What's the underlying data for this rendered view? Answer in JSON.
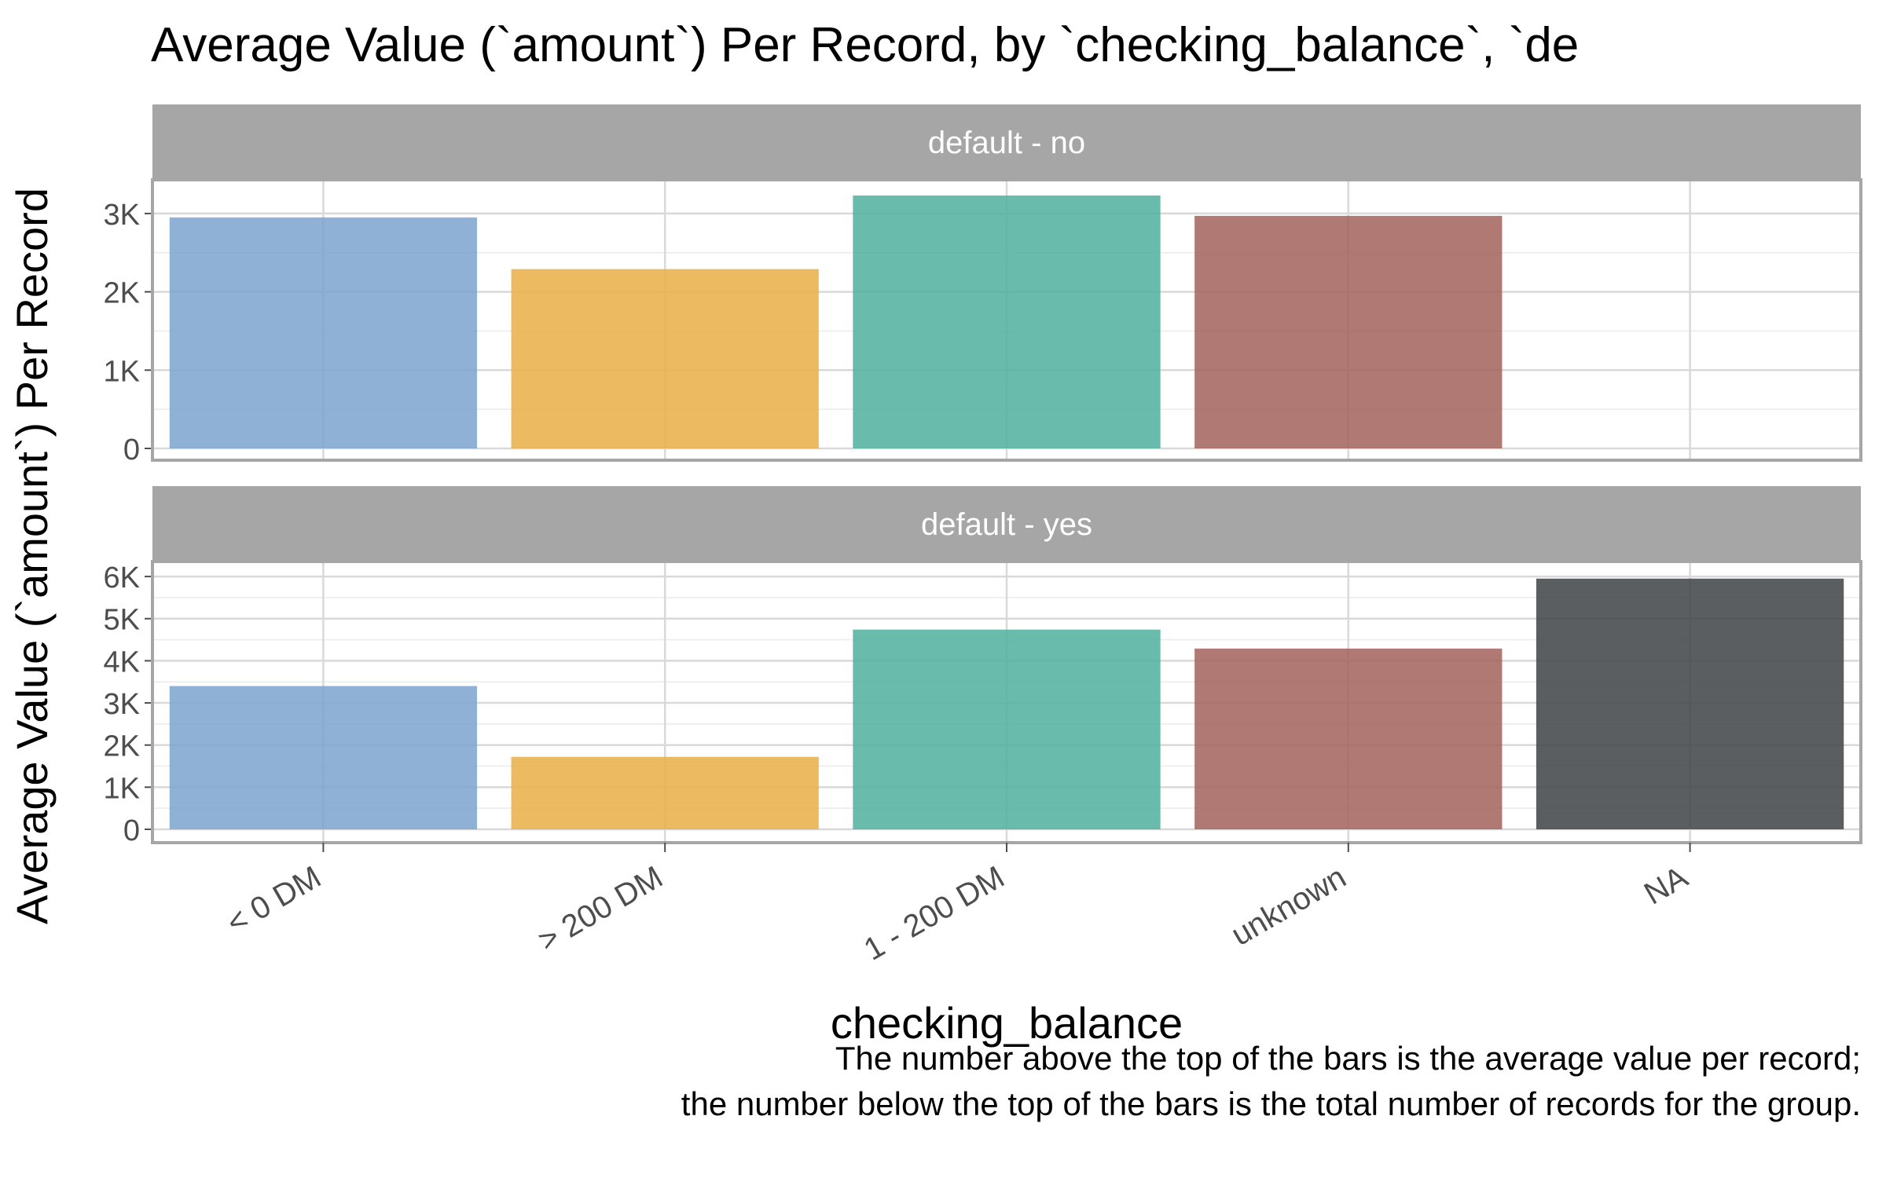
{
  "chart_data": {
    "type": "bar",
    "title": "Average Value (`amount`) Per Record, by `checking_balance`, `de",
    "xlabel": "checking_balance",
    "ylabel": "Average Value (`amount`) Per Record",
    "categories": [
      "< 0 DM",
      "> 200 DM",
      "1 - 200 DM",
      "unknown",
      "NA"
    ],
    "colors": [
      "#7BA3CF",
      "#E9AE45",
      "#4FAF9C",
      "#A2615B",
      "#3E4244"
    ],
    "panel_header_color": "#A6A6A6",
    "facets": [
      {
        "label": "default - no",
        "values": [
          2950,
          2290,
          3230,
          2970,
          null
        ],
        "ylim": [
          0,
          3400
        ],
        "yticks": [
          0,
          1000,
          2000,
          3000
        ],
        "ytick_labels": [
          "0",
          "1K",
          "2K",
          "3K"
        ]
      },
      {
        "label": "default - yes",
        "values": [
          3400,
          1720,
          4740,
          4290,
          5950
        ],
        "ylim": [
          0,
          6300
        ],
        "yticks": [
          0,
          1000,
          2000,
          3000,
          4000,
          5000,
          6000
        ],
        "ytick_labels": [
          "0",
          "1K",
          "2K",
          "3K",
          "4K",
          "5K",
          "6K"
        ]
      }
    ],
    "caption": [
      "The number above the top of the bars is the average value per record;",
      "the number below the top of the bars is the total number of records for the group."
    ],
    "grid": true
  }
}
